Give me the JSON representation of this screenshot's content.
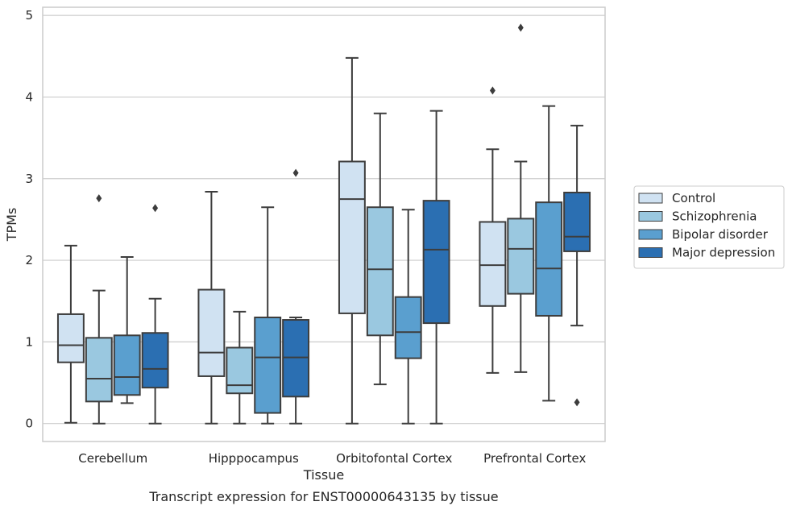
{
  "chart_data": {
    "type": "boxplot",
    "title": "",
    "caption": "Transcript expression for ENST00000643135 by tissue",
    "xlabel": "Tissue",
    "ylabel": "TPMs",
    "ylim": [
      -0.22,
      5.1
    ],
    "yticks": [
      0,
      1,
      2,
      3,
      4,
      5
    ],
    "grid": "horizontal",
    "legend_placement": "right",
    "categories": [
      "Cerebellum",
      "Hipppocampus",
      "Orbitofontal Cortex",
      "Prefrontal Cortex"
    ],
    "series": [
      {
        "name": "Control",
        "color": "#d0e2f2",
        "boxes": [
          {
            "whislo": 0.01,
            "q1": 0.75,
            "med": 0.96,
            "q3": 1.34,
            "whishi": 2.18,
            "fliers": []
          },
          {
            "whislo": 0.0,
            "q1": 0.58,
            "med": 0.87,
            "q3": 1.64,
            "whishi": 2.84,
            "fliers": []
          },
          {
            "whislo": 0.0,
            "q1": 1.35,
            "med": 2.75,
            "q3": 3.21,
            "whishi": 4.48,
            "fliers": []
          },
          {
            "whislo": 0.62,
            "q1": 1.44,
            "med": 1.94,
            "q3": 2.47,
            "whishi": 3.36,
            "fliers": [
              4.08
            ]
          }
        ]
      },
      {
        "name": "Schizophrenia",
        "color": "#9ac8e0",
        "boxes": [
          {
            "whislo": 0.0,
            "q1": 0.27,
            "med": 0.55,
            "q3": 1.05,
            "whishi": 1.63,
            "fliers": [
              2.76
            ]
          },
          {
            "whislo": 0.0,
            "q1": 0.37,
            "med": 0.47,
            "q3": 0.93,
            "whishi": 1.37,
            "fliers": []
          },
          {
            "whislo": 0.48,
            "q1": 1.08,
            "med": 1.89,
            "q3": 2.65,
            "whishi": 3.8,
            "fliers": []
          },
          {
            "whislo": 0.63,
            "q1": 1.59,
            "med": 2.14,
            "q3": 2.51,
            "whishi": 3.21,
            "fliers": [
              4.85
            ]
          }
        ]
      },
      {
        "name": "Bipolar disorder",
        "color": "#5a9fcf",
        "boxes": [
          {
            "whislo": 0.25,
            "q1": 0.35,
            "med": 0.57,
            "q3": 1.08,
            "whishi": 2.04,
            "fliers": []
          },
          {
            "whislo": 0.0,
            "q1": 0.13,
            "med": 0.81,
            "q3": 1.3,
            "whishi": 2.65,
            "fliers": []
          },
          {
            "whislo": 0.0,
            "q1": 0.8,
            "med": 1.12,
            "q3": 1.55,
            "whishi": 2.62,
            "fliers": []
          },
          {
            "whislo": 0.28,
            "q1": 1.32,
            "med": 1.9,
            "q3": 2.71,
            "whishi": 3.89,
            "fliers": []
          }
        ]
      },
      {
        "name": "Major depression",
        "color": "#2b6fb2",
        "boxes": [
          {
            "whislo": 0.0,
            "q1": 0.44,
            "med": 0.67,
            "q3": 1.11,
            "whishi": 1.53,
            "fliers": [
              2.64
            ]
          },
          {
            "whislo": 0.0,
            "q1": 0.33,
            "med": 0.81,
            "q3": 1.27,
            "whishi": 1.3,
            "fliers": [
              3.07
            ]
          },
          {
            "whislo": 0.0,
            "q1": 1.23,
            "med": 2.13,
            "q3": 2.73,
            "whishi": 3.83,
            "fliers": []
          },
          {
            "whislo": 1.2,
            "q1": 2.11,
            "med": 2.29,
            "q3": 2.83,
            "whishi": 3.65,
            "fliers": [
              0.26
            ]
          }
        ]
      }
    ]
  }
}
